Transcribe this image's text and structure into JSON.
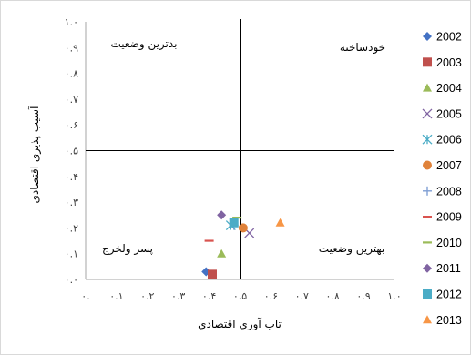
{
  "chart_data": {
    "type": "scatter",
    "xlabel": "تاب آوری اقتصادی",
    "ylabel": "آسیب پذیری اقتصادی",
    "xlim": [
      0,
      1
    ],
    "ylim": [
      0,
      1
    ],
    "x_ticks": [
      "۰.",
      "۰.۱",
      "۰.۲",
      "۰.۳",
      "۰.۴",
      "۰.۵",
      "۰.۶",
      "۰.۷",
      "۰.۸",
      "۰.۹",
      "۱.۰"
    ],
    "y_ticks": [
      "۰.۰",
      "۰.۱",
      "۰.۲",
      "۰.۳",
      "۰.۴",
      "۰.۵",
      "۰.۶",
      "۰.۷",
      "۰.۸",
      "۰.۹",
      "۱.۰"
    ],
    "reference_lines": {
      "x": 0.5,
      "y": 0.5
    },
    "quadrant_labels": {
      "top_left": "بدترین وضعیت",
      "top_right": "خودساخته",
      "bottom_left": "پسر ولخرج",
      "bottom_right": "بهترین وضعیت"
    },
    "grid": false,
    "legend_position": "right",
    "series": [
      {
        "name": "2002",
        "marker": "diamond",
        "color": "#4472c4",
        "x": 0.39,
        "y": 0.03
      },
      {
        "name": "2003",
        "marker": "square",
        "color": "#c0504d",
        "x": 0.41,
        "y": 0.02
      },
      {
        "name": "2004",
        "marker": "triangle",
        "color": "#9bbb59",
        "x": 0.44,
        "y": 0.1
      },
      {
        "name": "2005",
        "marker": "x",
        "color": "#8064a2",
        "x": 0.53,
        "y": 0.18
      },
      {
        "name": "2006",
        "marker": "star",
        "color": "#4bacc6",
        "x": 0.47,
        "y": 0.21
      },
      {
        "name": "2007",
        "marker": "circle",
        "color": "#e0823a",
        "x": 0.51,
        "y": 0.2
      },
      {
        "name": "2008",
        "marker": "plus",
        "color": "#7f9fd4",
        "x": 0.48,
        "y": 0.21
      },
      {
        "name": "2009",
        "marker": "dash",
        "color": "#d9534f",
        "x": 0.4,
        "y": 0.15
      },
      {
        "name": "2010",
        "marker": "dash",
        "color": "#9bbb59",
        "x": 0.49,
        "y": 0.24
      },
      {
        "name": "2011",
        "marker": "diamond",
        "color": "#8064a2",
        "x": 0.44,
        "y": 0.25
      },
      {
        "name": "2012",
        "marker": "square",
        "color": "#4bacc6",
        "x": 0.48,
        "y": 0.22
      },
      {
        "name": "2013",
        "marker": "triangle",
        "color": "#f79646",
        "x": 0.63,
        "y": 0.22
      }
    ]
  }
}
